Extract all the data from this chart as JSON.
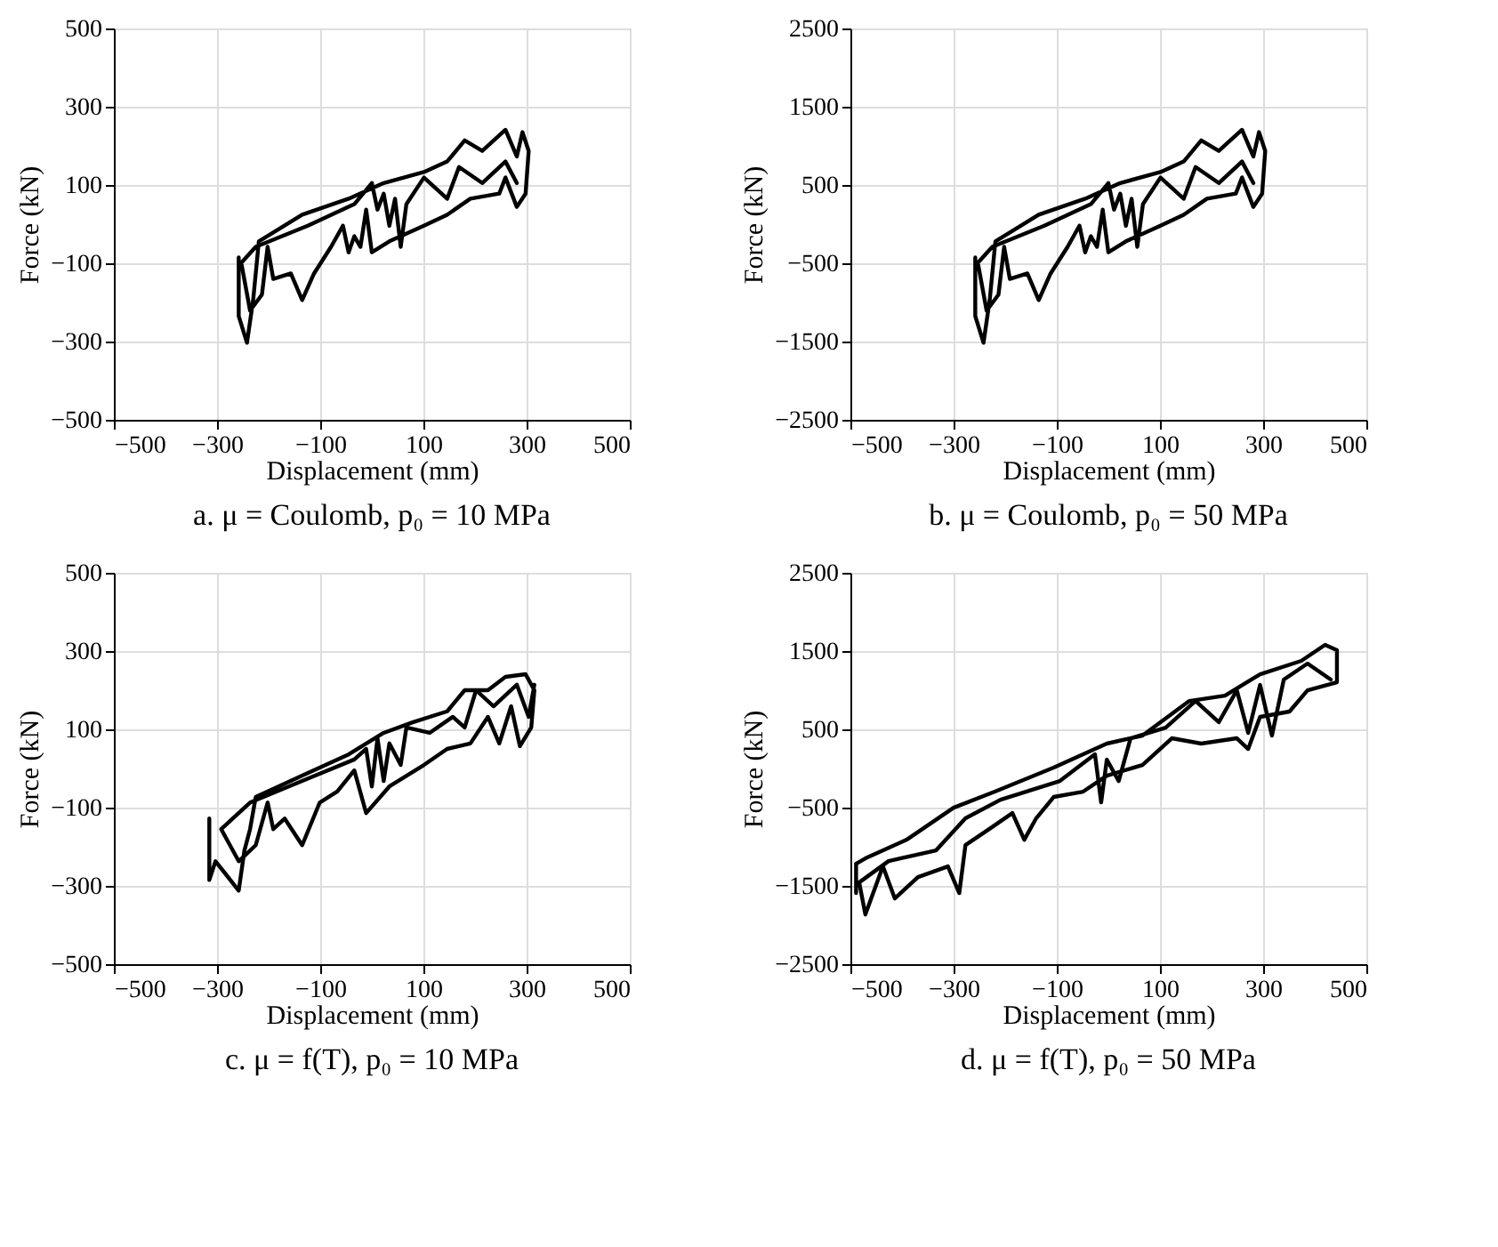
{
  "chart_data": [
    {
      "type": "line",
      "title": "a.  μ = Coulomb,  p₀ = 10 MPa",
      "xlabel": "Displacement (mm)",
      "ylabel": "Force (kN)",
      "xlim": [
        -500,
        500
      ],
      "xticks": [
        -500,
        -300,
        -100,
        100,
        300,
        500
      ],
      "ylim": [
        -500,
        500
      ],
      "yticks": [
        -500,
        -300,
        -100,
        100,
        300,
        500
      ],
      "grid": true,
      "line_style": "solid",
      "marker": "none",
      "series": [
        {
          "color": "#000000",
          "x": [
            -258,
            -258,
            -242,
            -230,
            -219,
            -135,
            -45,
            23,
            101,
            146,
            180,
            214,
            259,
            281,
            292,
            304,
            298,
            281,
            259,
            247,
            191,
            146,
            101,
            34,
            0,
            -11,
            -22,
            -34,
            -45,
            -56,
            -79,
            -112,
            -135,
            -157,
            -191,
            -202,
            -213,
            -236,
            -253,
            -225,
            -124,
            -34,
            0,
            11,
            23,
            34,
            45,
            56,
            67,
            101,
            146,
            169,
            214,
            259,
            281
          ],
          "values": [
            -85,
            -235,
            -303,
            -194,
            -44,
            24,
            65,
            105,
            133,
            160,
            214,
            187,
            241,
            173,
            235,
            187,
            78,
            44,
            119,
            78,
            65,
            24,
            -4,
            -44,
            -72,
            37,
            -58,
            -31,
            -72,
            -4,
            -58,
            -126,
            -194,
            -126,
            -140,
            -58,
            -180,
            -221,
            -99,
            -58,
            -4,
            51,
            105,
            37,
            78,
            -4,
            65,
            -58,
            51,
            119,
            65,
            146,
            105,
            160,
            105
          ]
        }
      ]
    },
    {
      "type": "line",
      "title": "b.  μ = Coulomb,  p₀ = 50 MPa",
      "xlabel": "Displacement (mm)",
      "ylabel": "Force (kN)",
      "xlim": [
        -500,
        500
      ],
      "xticks": [
        -500,
        -300,
        -100,
        100,
        300,
        500
      ],
      "ylim": [
        -2500,
        2500
      ],
      "yticks": [
        -2500,
        -1500,
        -500,
        500,
        1500,
        2500
      ],
      "grid": true,
      "line_style": "solid",
      "marker": "none",
      "series": [
        {
          "color": "#000000",
          "x": [
            -258,
            -258,
            -242,
            -230,
            -219,
            -135,
            -45,
            23,
            101,
            146,
            180,
            214,
            259,
            281,
            292,
            304,
            298,
            281,
            259,
            247,
            191,
            146,
            101,
            34,
            0,
            -11,
            -22,
            -34,
            -45,
            -56,
            -79,
            -112,
            -135,
            -157,
            -191,
            -202,
            -213,
            -236,
            -253,
            -225,
            -124,
            -34,
            0,
            11,
            23,
            34,
            45,
            56,
            67,
            101,
            146,
            169,
            214,
            259,
            281
          ],
          "values": [
            -425,
            -1175,
            -1515,
            -970,
            -220,
            120,
            325,
            525,
            665,
            800,
            1070,
            935,
            1205,
            865,
            1175,
            935,
            390,
            220,
            595,
            390,
            325,
            120,
            -20,
            -220,
            -360,
            185,
            -290,
            -155,
            -360,
            -20,
            -290,
            -630,
            -970,
            -630,
            -700,
            -290,
            -900,
            -1105,
            -495,
            -290,
            -20,
            255,
            525,
            185,
            390,
            -20,
            325,
            -290,
            255,
            595,
            325,
            730,
            525,
            800,
            525
          ]
        }
      ]
    },
    {
      "type": "line",
      "title": "c.  μ = f(T),  p₀ = 10 MPa",
      "xlabel": "Displacement (mm)",
      "ylabel": "Force (kN)",
      "xlim": [
        -500,
        500
      ],
      "xticks": [
        -500,
        -300,
        -100,
        100,
        300,
        500
      ],
      "ylim": [
        -500,
        500
      ],
      "yticks": [
        -500,
        -300,
        -100,
        100,
        300,
        500
      ],
      "grid": true,
      "line_style": "solid",
      "marker": "none",
      "series": [
        {
          "color": "#000000",
          "x": [
            -315,
            -315,
            -303,
            -258,
            -247,
            -236,
            -225,
            -135,
            -45,
            23,
            79,
            146,
            180,
            225,
            259,
            298,
            315,
            309,
            287,
            270,
            247,
            225,
            191,
            146,
            101,
            34,
            -11,
            -34,
            -67,
            -101,
            -135,
            -169,
            -191,
            -202,
            -225,
            -258,
            -292,
            -236,
            -135,
            -34,
            -11,
            0,
            11,
            23,
            34,
            56,
            67,
            112,
            157,
            180,
            202,
            236,
            281,
            304,
            315
          ],
          "values": [
            -128,
            -285,
            -237,
            -312,
            -210,
            -155,
            -73,
            -18,
            36,
            91,
            118,
            146,
            200,
            200,
            234,
            241,
            200,
            105,
            57,
            159,
            64,
            132,
            64,
            50,
            9,
            -46,
            -114,
            -5,
            -59,
            -87,
            -196,
            -128,
            -155,
            -87,
            -196,
            -237,
            -155,
            -87,
            -32,
            23,
            50,
            -46,
            77,
            -32,
            64,
            9,
            105,
            91,
            132,
            105,
            200,
            159,
            214,
            132,
            214
          ]
        }
      ]
    },
    {
      "type": "line",
      "title": "d.  μ = f(T),  p₀ = 50 MPa",
      "xlabel": "Displacement (mm)",
      "ylabel": "Force (kN)",
      "xlim": [
        -500,
        500
      ],
      "xticks": [
        -500,
        -300,
        -100,
        100,
        300,
        500
      ],
      "ylim": [
        -2500,
        2500
      ],
      "yticks": [
        -2500,
        -1500,
        -500,
        500,
        1500,
        2500
      ],
      "grid": true,
      "line_style": "solid",
      "marker": "none",
      "series": [
        {
          "color": "#000000",
          "x": [
            -489,
            -489,
            -471,
            -391,
            -300,
            -220,
            -106,
            -3,
            66,
            157,
            226,
            294,
            374,
            420,
            443,
            443,
            386,
            351,
            294,
            271,
            249,
            180,
            123,
            66,
            -3,
            -49,
            -106,
            -140,
            -163,
            -186,
            -231,
            -277,
            -289,
            -311,
            -369,
            -414,
            -437,
            -471,
            -483,
            -426,
            -334,
            -277,
            -209,
            -94,
            -26,
            -14,
            -3,
            20,
            43,
            111,
            169,
            214,
            249,
            271,
            294,
            317,
            340,
            386,
            431
          ],
          "values": [
            -1592,
            -1217,
            -1149,
            -910,
            -501,
            -296,
            11,
            318,
            420,
            863,
            931,
            1204,
            1375,
            1579,
            1511,
            1102,
            999,
            727,
            659,
            249,
            386,
            318,
            386,
            45,
            -92,
            -296,
            -364,
            -637,
            -910,
            -569,
            -774,
            -978,
            -1592,
            -1251,
            -1387,
            -1660,
            -1251,
            -1865,
            -1456,
            -1183,
            -1046,
            -637,
            -399,
            -160,
            181,
            -433,
            113,
            -160,
            386,
            522,
            863,
            591,
            999,
            454,
            1068,
            420,
            1136,
            1341,
            1136
          ]
        }
      ]
    }
  ]
}
